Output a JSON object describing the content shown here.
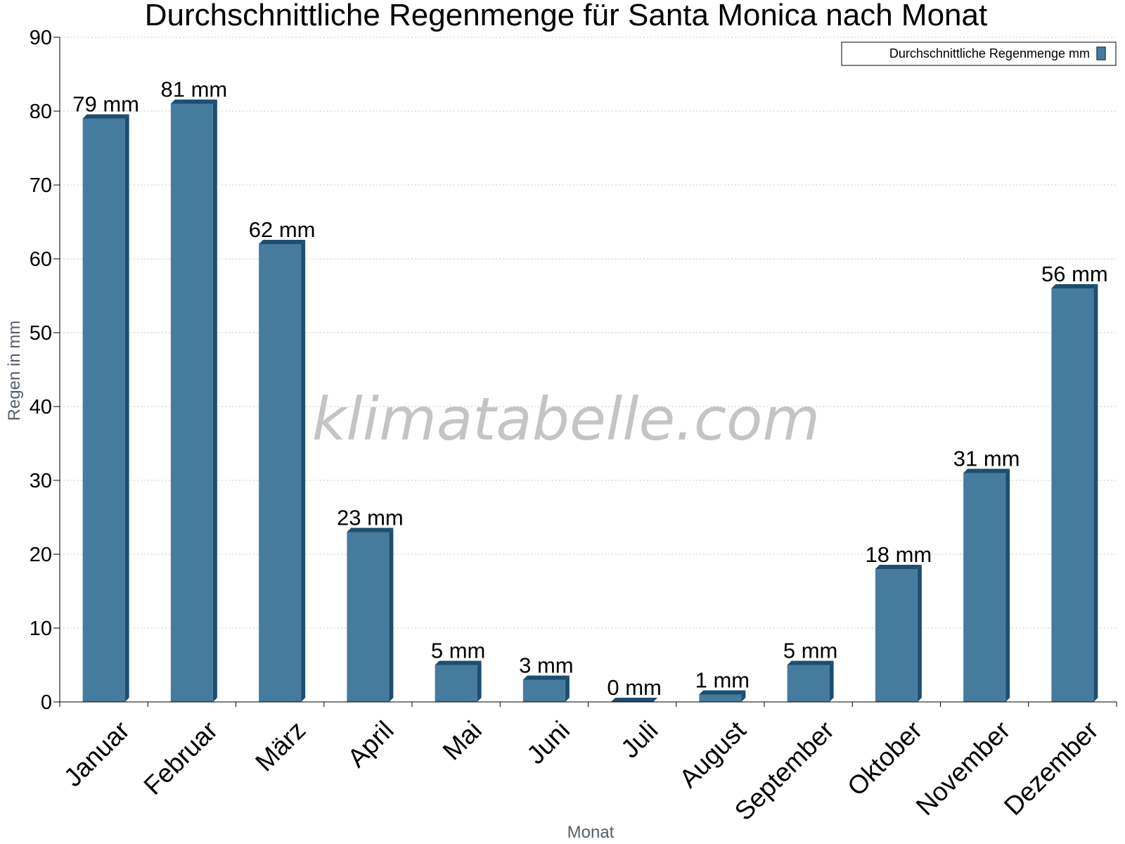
{
  "chart_data": {
    "type": "bar",
    "title": "Durchschnittliche Regenmenge für Santa Monica nach Monat",
    "xlabel": "Monat",
    "ylabel": "Regen in mm",
    "ylim": [
      0,
      90
    ],
    "yticks": [
      0,
      10,
      20,
      30,
      40,
      50,
      60,
      70,
      80,
      90
    ],
    "grid": true,
    "legend_position": "top-right",
    "categories": [
      "Januar",
      "Februar",
      "März",
      "April",
      "Mai",
      "Juni",
      "Juli",
      "August",
      "September",
      "Oktober",
      "November",
      "Dezember"
    ],
    "series": [
      {
        "name": "Durchschnittliche Regenmenge mm",
        "values": [
          79,
          81,
          62,
          23,
          5,
          3,
          0,
          1,
          5,
          18,
          31,
          56
        ],
        "value_labels": [
          "79 mm",
          "81 mm",
          "62 mm",
          "23 mm",
          "5 mm",
          "3 mm",
          "0 mm",
          "1 mm",
          "5 mm",
          "18 mm",
          "31 mm",
          "56 mm"
        ],
        "color": "#457b9d",
        "shade_color": "#1d4e6e"
      }
    ],
    "watermark": "klimatabelle.com"
  }
}
